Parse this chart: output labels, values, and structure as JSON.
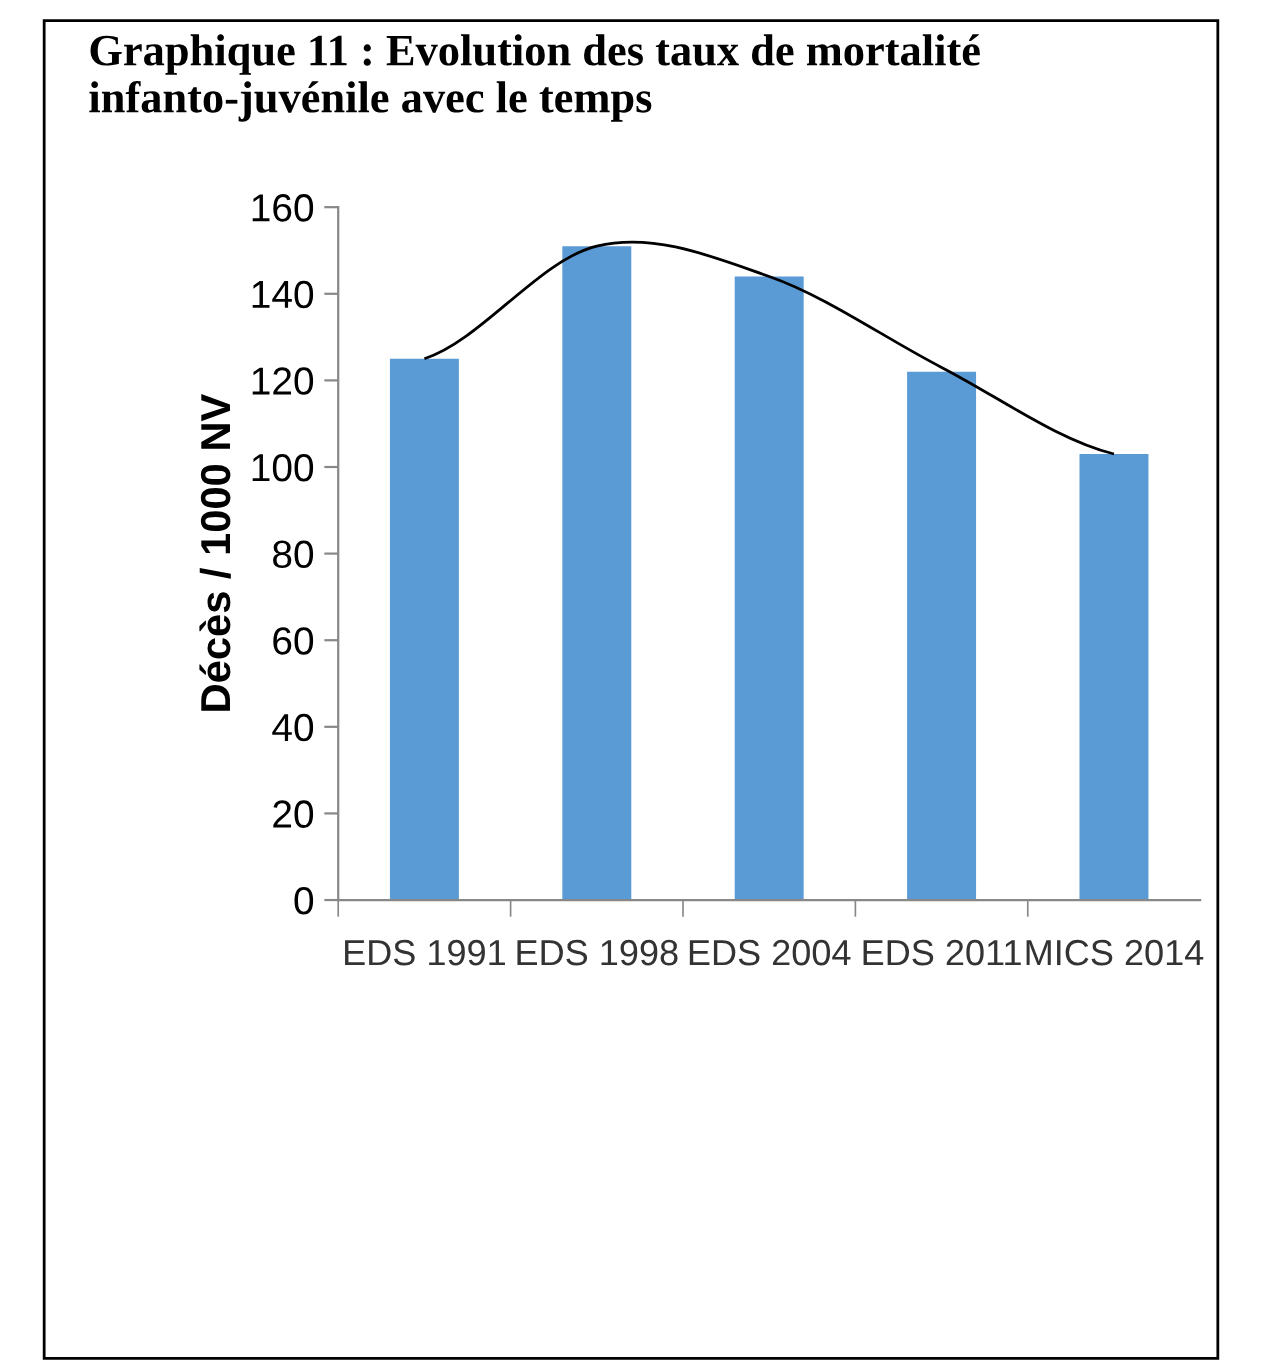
{
  "chart_data": {
    "type": "bar",
    "title": "Graphique 11 : Evolution des taux de mortalité infanto-juvénile avec le temps",
    "ylabel": "Décès / 1000 NV",
    "categories": [
      "EDS 1991",
      "EDS 1998",
      "EDS 2004",
      "EDS 2011",
      "MICS 2014"
    ],
    "series": [
      {
        "color": "#5b9bd5",
        "values": [
          125,
          151,
          144,
          122,
          103
        ]
      },
      {
        "type": "line",
        "color": "#000000",
        "values": [
          125,
          151,
          144,
          123,
          103
        ]
      }
    ],
    "ylim": [
      0,
      160
    ],
    "yticks": [
      0,
      20,
      40,
      60,
      80,
      100,
      120,
      140,
      160
    ],
    "grid": false,
    "legend": false
  }
}
